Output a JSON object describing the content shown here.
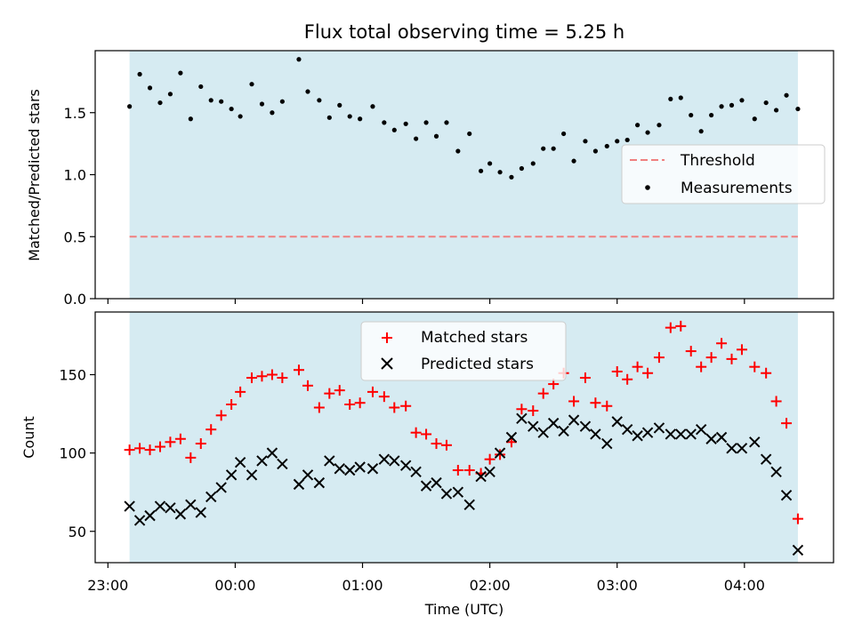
{
  "chart_data": {
    "title": "Flux total observing time = 5.25 h",
    "xlabel": "Time (UTC)",
    "x_unit": "hours after 23:00",
    "xlim": [
      -0.1,
      5.7
    ],
    "x_ticks": [
      {
        "value": 0,
        "label": "23:00"
      },
      {
        "value": 1,
        "label": "00:00"
      },
      {
        "value": 2,
        "label": "01:00"
      },
      {
        "value": 3,
        "label": "02:00"
      },
      {
        "value": 4,
        "label": "03:00"
      },
      {
        "value": 5,
        "label": "04:00"
      }
    ],
    "observing_span": [
      0.17,
      5.42
    ],
    "span_color": "#add8e6",
    "panels": [
      {
        "type": "scatter",
        "ylabel": "Matched/Predicted stars",
        "ylim": [
          0,
          2.0
        ],
        "y_ticks": [
          {
            "value": 0.0,
            "label": "0.0"
          },
          {
            "value": 0.5,
            "label": "0.5"
          },
          {
            "value": 1.0,
            "label": "1.0"
          },
          {
            "value": 1.5,
            "label": "1.5"
          }
        ],
        "threshold": {
          "name": "Threshold",
          "value": 0.5,
          "color": "#f08080"
        },
        "legend_position": "center-right",
        "series": [
          {
            "name": "Measurements",
            "marker": "dot",
            "color": "#000000",
            "points": [
              [
                0.17,
                1.55
              ],
              [
                0.25,
                1.81
              ],
              [
                0.33,
                1.7
              ],
              [
                0.41,
                1.58
              ],
              [
                0.49,
                1.65
              ],
              [
                0.57,
                1.82
              ],
              [
                0.65,
                1.45
              ],
              [
                0.73,
                1.71
              ],
              [
                0.81,
                1.6
              ],
              [
                0.89,
                1.59
              ],
              [
                0.97,
                1.53
              ],
              [
                1.04,
                1.47
              ],
              [
                1.13,
                1.73
              ],
              [
                1.21,
                1.57
              ],
              [
                1.29,
                1.5
              ],
              [
                1.37,
                1.59
              ],
              [
                1.5,
                1.93
              ],
              [
                1.57,
                1.67
              ],
              [
                1.66,
                1.6
              ],
              [
                1.74,
                1.46
              ],
              [
                1.82,
                1.56
              ],
              [
                1.9,
                1.47
              ],
              [
                1.98,
                1.45
              ],
              [
                2.08,
                1.55
              ],
              [
                2.17,
                1.42
              ],
              [
                2.25,
                1.36
              ],
              [
                2.34,
                1.41
              ],
              [
                2.42,
                1.29
              ],
              [
                2.5,
                1.42
              ],
              [
                2.58,
                1.31
              ],
              [
                2.66,
                1.42
              ],
              [
                2.75,
                1.19
              ],
              [
                2.84,
                1.33
              ],
              [
                2.93,
                1.03
              ],
              [
                3.0,
                1.09
              ],
              [
                3.08,
                1.02
              ],
              [
                3.17,
                0.98
              ],
              [
                3.25,
                1.05
              ],
              [
                3.34,
                1.09
              ],
              [
                3.42,
                1.21
              ],
              [
                3.5,
                1.21
              ],
              [
                3.58,
                1.33
              ],
              [
                3.66,
                1.11
              ],
              [
                3.75,
                1.27
              ],
              [
                3.83,
                1.19
              ],
              [
                3.92,
                1.23
              ],
              [
                4.0,
                1.27
              ],
              [
                4.08,
                1.28
              ],
              [
                4.16,
                1.4
              ],
              [
                4.24,
                1.34
              ],
              [
                4.33,
                1.4
              ],
              [
                4.42,
                1.61
              ],
              [
                4.5,
                1.62
              ],
              [
                4.58,
                1.48
              ],
              [
                4.66,
                1.35
              ],
              [
                4.74,
                1.48
              ],
              [
                4.82,
                1.55
              ],
              [
                4.9,
                1.56
              ],
              [
                4.98,
                1.6
              ],
              [
                5.08,
                1.45
              ],
              [
                5.17,
                1.58
              ],
              [
                5.25,
                1.52
              ],
              [
                5.33,
                1.64
              ],
              [
                5.42,
                1.53
              ]
            ]
          }
        ]
      },
      {
        "type": "scatter",
        "ylabel": "Count",
        "ylim": [
          30,
          190
        ],
        "y_ticks": [
          {
            "value": 50,
            "label": "50"
          },
          {
            "value": 100,
            "label": "100"
          },
          {
            "value": 150,
            "label": "150"
          }
        ],
        "legend_position": "top-center",
        "series": [
          {
            "name": "Matched stars",
            "marker": "plus",
            "color": "#ff0000",
            "points": [
              [
                0.17,
                102
              ],
              [
                0.25,
                103
              ],
              [
                0.33,
                102
              ],
              [
                0.41,
                104
              ],
              [
                0.49,
                107
              ],
              [
                0.57,
                109
              ],
              [
                0.65,
                97
              ],
              [
                0.73,
                106
              ],
              [
                0.81,
                115
              ],
              [
                0.89,
                124
              ],
              [
                0.97,
                131
              ],
              [
                1.04,
                139
              ],
              [
                1.13,
                148
              ],
              [
                1.21,
                149
              ],
              [
                1.29,
                150
              ],
              [
                1.37,
                148
              ],
              [
                1.5,
                153
              ],
              [
                1.57,
                143
              ],
              [
                1.66,
                129
              ],
              [
                1.74,
                138
              ],
              [
                1.82,
                140
              ],
              [
                1.9,
                131
              ],
              [
                1.98,
                132
              ],
              [
                2.08,
                139
              ],
              [
                2.17,
                136
              ],
              [
                2.25,
                129
              ],
              [
                2.34,
                130
              ],
              [
                2.42,
                113
              ],
              [
                2.5,
                112
              ],
              [
                2.58,
                106
              ],
              [
                2.66,
                105
              ],
              [
                2.75,
                89
              ],
              [
                2.84,
                89
              ],
              [
                2.93,
                87
              ],
              [
                3.0,
                96
              ],
              [
                3.08,
                99
              ],
              [
                3.17,
                107
              ],
              [
                3.25,
                128
              ],
              [
                3.34,
                127
              ],
              [
                3.42,
                138
              ],
              [
                3.5,
                144
              ],
              [
                3.58,
                151
              ],
              [
                3.66,
                133
              ],
              [
                3.75,
                148
              ],
              [
                3.83,
                132
              ],
              [
                3.92,
                130
              ],
              [
                4.0,
                152
              ],
              [
                4.08,
                147
              ],
              [
                4.16,
                155
              ],
              [
                4.24,
                151
              ],
              [
                4.33,
                161
              ],
              [
                4.42,
                180
              ],
              [
                4.5,
                181
              ],
              [
                4.58,
                165
              ],
              [
                4.66,
                155
              ],
              [
                4.74,
                161
              ],
              [
                4.82,
                170
              ],
              [
                4.9,
                160
              ],
              [
                4.98,
                166
              ],
              [
                5.08,
                155
              ],
              [
                5.17,
                151
              ],
              [
                5.25,
                133
              ],
              [
                5.33,
                119
              ],
              [
                5.42,
                58
              ]
            ]
          },
          {
            "name": "Predicted stars",
            "marker": "x",
            "color": "#000000",
            "points": [
              [
                0.17,
                66
              ],
              [
                0.25,
                57
              ],
              [
                0.33,
                60
              ],
              [
                0.41,
                66
              ],
              [
                0.49,
                65
              ],
              [
                0.57,
                61
              ],
              [
                0.65,
                67
              ],
              [
                0.73,
                62
              ],
              [
                0.81,
                72
              ],
              [
                0.89,
                78
              ],
              [
                0.97,
                86
              ],
              [
                1.04,
                94
              ],
              [
                1.13,
                86
              ],
              [
                1.21,
                95
              ],
              [
                1.29,
                100
              ],
              [
                1.37,
                93
              ],
              [
                1.5,
                80
              ],
              [
                1.57,
                86
              ],
              [
                1.66,
                81
              ],
              [
                1.74,
                95
              ],
              [
                1.82,
                90
              ],
              [
                1.9,
                89
              ],
              [
                1.98,
                91
              ],
              [
                2.08,
                90
              ],
              [
                2.17,
                96
              ],
              [
                2.25,
                95
              ],
              [
                2.34,
                92
              ],
              [
                2.42,
                88
              ],
              [
                2.5,
                79
              ],
              [
                2.58,
                81
              ],
              [
                2.66,
                74
              ],
              [
                2.75,
                75
              ],
              [
                2.84,
                67
              ],
              [
                2.93,
                85
              ],
              [
                3.0,
                88
              ],
              [
                3.08,
                100
              ],
              [
                3.17,
                110
              ],
              [
                3.25,
                122
              ],
              [
                3.34,
                117
              ],
              [
                3.42,
                113
              ],
              [
                3.5,
                119
              ],
              [
                3.58,
                114
              ],
              [
                3.66,
                121
              ],
              [
                3.75,
                117
              ],
              [
                3.83,
                112
              ],
              [
                3.92,
                106
              ],
              [
                4.0,
                120
              ],
              [
                4.08,
                115
              ],
              [
                4.16,
                111
              ],
              [
                4.24,
                113
              ],
              [
                4.33,
                116
              ],
              [
                4.42,
                112
              ],
              [
                4.5,
                112
              ],
              [
                4.58,
                112
              ],
              [
                4.66,
                115
              ],
              [
                4.74,
                109
              ],
              [
                4.82,
                110
              ],
              [
                4.9,
                103
              ],
              [
                4.98,
                103
              ],
              [
                5.08,
                107
              ],
              [
                5.17,
                96
              ],
              [
                5.25,
                88
              ],
              [
                5.33,
                73
              ],
              [
                5.42,
                38
              ]
            ]
          }
        ]
      }
    ]
  }
}
